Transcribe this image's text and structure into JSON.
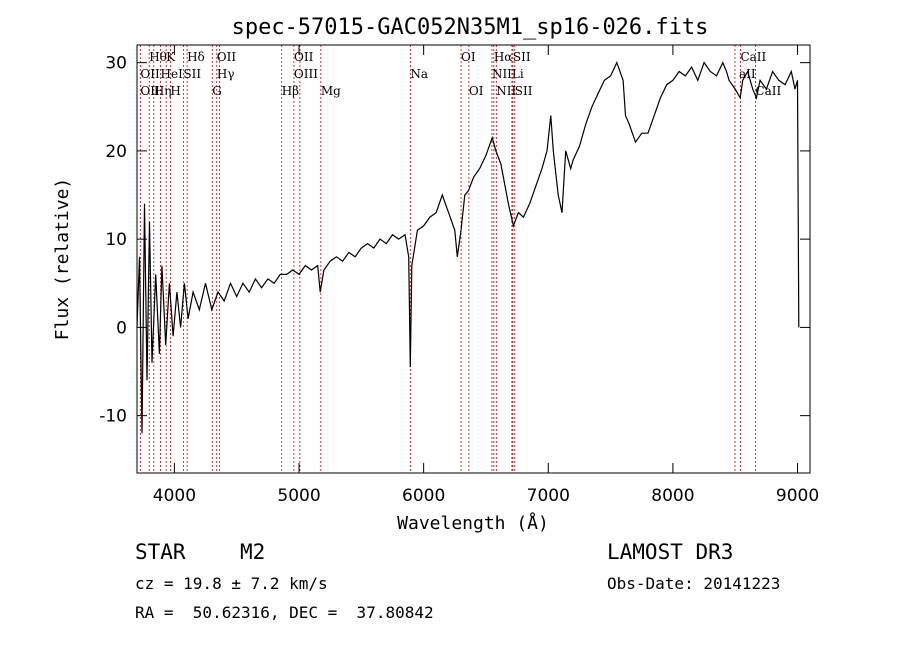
{
  "chart_data": {
    "type": "line",
    "title": "spec-57015-GAC052N35M1_sp16-026.fits",
    "xlabel": "Wavelength (Å)",
    "ylabel": "Flux (relative)",
    "xlim": [
      3700,
      9100
    ],
    "ylim": [
      -16.5,
      32
    ],
    "xticks": [
      4000,
      5000,
      6000,
      7000,
      8000,
      9000
    ],
    "yticks": [
      -10,
      0,
      10,
      20,
      30
    ],
    "grid": false,
    "spectrum": {
      "name": "flux",
      "points": [
        [
          3700,
          0
        ],
        [
          3720,
          8
        ],
        [
          3740,
          -12
        ],
        [
          3760,
          14
        ],
        [
          3780,
          -6
        ],
        [
          3800,
          12
        ],
        [
          3820,
          -4
        ],
        [
          3850,
          6
        ],
        [
          3880,
          -3
        ],
        [
          3900,
          7
        ],
        [
          3930,
          -2
        ],
        [
          3960,
          5
        ],
        [
          3990,
          -1
        ],
        [
          4020,
          4
        ],
        [
          4050,
          0
        ],
        [
          4080,
          5
        ],
        [
          4110,
          1
        ],
        [
          4150,
          4
        ],
        [
          4200,
          2
        ],
        [
          4250,
          5
        ],
        [
          4300,
          2
        ],
        [
          4350,
          4
        ],
        [
          4400,
          3
        ],
        [
          4450,
          5
        ],
        [
          4500,
          3.5
        ],
        [
          4550,
          5
        ],
        [
          4600,
          4
        ],
        [
          4650,
          5.5
        ],
        [
          4700,
          4.5
        ],
        [
          4750,
          5.5
        ],
        [
          4800,
          5
        ],
        [
          4850,
          6
        ],
        [
          4900,
          6
        ],
        [
          4950,
          6.5
        ],
        [
          5000,
          6
        ],
        [
          5050,
          7
        ],
        [
          5100,
          6.5
        ],
        [
          5150,
          7
        ],
        [
          5170,
          4
        ],
        [
          5200,
          6.5
        ],
        [
          5250,
          7.5
        ],
        [
          5300,
          8
        ],
        [
          5350,
          7.5
        ],
        [
          5400,
          8.5
        ],
        [
          5450,
          8
        ],
        [
          5500,
          9
        ],
        [
          5550,
          9.5
        ],
        [
          5600,
          9
        ],
        [
          5650,
          10
        ],
        [
          5700,
          9.5
        ],
        [
          5750,
          10.5
        ],
        [
          5800,
          10
        ],
        [
          5850,
          10.5
        ],
        [
          5880,
          8
        ],
        [
          5893,
          -4.5
        ],
        [
          5905,
          7
        ],
        [
          5950,
          11
        ],
        [
          6000,
          11.5
        ],
        [
          6050,
          12.5
        ],
        [
          6100,
          13
        ],
        [
          6150,
          15
        ],
        [
          6200,
          13
        ],
        [
          6250,
          11
        ],
        [
          6270,
          8
        ],
        [
          6300,
          11
        ],
        [
          6330,
          15
        ],
        [
          6360,
          15.5
        ],
        [
          6400,
          17
        ],
        [
          6450,
          18
        ],
        [
          6500,
          19.5
        ],
        [
          6550,
          21.5
        ],
        [
          6580,
          20
        ],
        [
          6620,
          18.5
        ],
        [
          6680,
          14
        ],
        [
          6720,
          11.5
        ],
        [
          6760,
          13
        ],
        [
          6800,
          12.5
        ],
        [
          6850,
          14
        ],
        [
          6900,
          16
        ],
        [
          6950,
          18
        ],
        [
          6990,
          20
        ],
        [
          7020,
          24
        ],
        [
          7040,
          20
        ],
        [
          7080,
          15
        ],
        [
          7110,
          13
        ],
        [
          7140,
          20
        ],
        [
          7180,
          18
        ],
        [
          7200,
          19
        ],
        [
          7250,
          20.5
        ],
        [
          7300,
          23
        ],
        [
          7350,
          25
        ],
        [
          7400,
          26.5
        ],
        [
          7450,
          28
        ],
        [
          7500,
          28.5
        ],
        [
          7550,
          30
        ],
        [
          7600,
          28
        ],
        [
          7620,
          24
        ],
        [
          7650,
          23
        ],
        [
          7700,
          21
        ],
        [
          7750,
          22
        ],
        [
          7800,
          22
        ],
        [
          7850,
          24
        ],
        [
          7900,
          26
        ],
        [
          7950,
          27.5
        ],
        [
          8000,
          28
        ],
        [
          8050,
          29
        ],
        [
          8100,
          28.5
        ],
        [
          8150,
          29.5
        ],
        [
          8200,
          28
        ],
        [
          8250,
          30
        ],
        [
          8300,
          29
        ],
        [
          8350,
          28.5
        ],
        [
          8400,
          30
        ],
        [
          8430,
          29
        ],
        [
          8450,
          28
        ],
        [
          8500,
          27
        ],
        [
          8540,
          26
        ],
        [
          8560,
          28
        ],
        [
          8600,
          29
        ],
        [
          8640,
          27
        ],
        [
          8670,
          26
        ],
        [
          8700,
          28
        ],
        [
          8750,
          27
        ],
        [
          8800,
          29
        ],
        [
          8850,
          28
        ],
        [
          8900,
          27.5
        ],
        [
          8950,
          29
        ],
        [
          8980,
          27
        ],
        [
          9000,
          28
        ],
        [
          9010,
          0
        ]
      ]
    },
    "line_markers": [
      {
        "label": "Hθ",
        "x": 3798,
        "row": 0
      },
      {
        "label": "K",
        "x": 3934,
        "row": 0
      },
      {
        "label": "Hδ",
        "x": 4102,
        "row": 0
      },
      {
        "label": "OII",
        "x": 4340,
        "row": 0
      },
      {
        "label": "OII",
        "x": 4960,
        "row": 0
      },
      {
        "label": "OI",
        "x": 6300,
        "row": 0
      },
      {
        "label": "Hα",
        "x": 6563,
        "row": 0
      },
      {
        "label": "SII",
        "x": 6716,
        "row": 0
      },
      {
        "label": "CaII",
        "x": 8542,
        "row": 0
      },
      {
        "label": "OII",
        "x": 3727,
        "row": 1
      },
      {
        "label": "HeI",
        "x": 3889,
        "row": 1
      },
      {
        "label": "SII",
        "x": 4072,
        "row": 1
      },
      {
        "label": "Hγ",
        "x": 4341,
        "row": 1
      },
      {
        "label": "OIII",
        "x": 4959,
        "row": 1
      },
      {
        "label": "Na",
        "x": 5893,
        "row": 1
      },
      {
        "label": "NII",
        "x": 6548,
        "row": 1
      },
      {
        "label": "Li",
        "x": 6708,
        "row": 1
      },
      {
        "label": "aII",
        "x": 8530,
        "row": 1
      },
      {
        "label": "OII",
        "x": 3727,
        "row": 2
      },
      {
        "label": "Hη",
        "x": 3835,
        "row": 2
      },
      {
        "label": "H",
        "x": 3968,
        "row": 2
      },
      {
        "label": "G",
        "x": 4304,
        "row": 2
      },
      {
        "label": "Hβ",
        "x": 4861,
        "row": 2
      },
      {
        "label": "Mg",
        "x": 5175,
        "row": 2
      },
      {
        "label": "OI",
        "x": 6363,
        "row": 2
      },
      {
        "label": "NII",
        "x": 6583,
        "row": 2
      },
      {
        "label": "SII",
        "x": 6731,
        "row": 2
      },
      {
        "label": "CaII",
        "x": 8662,
        "row": 2
      }
    ],
    "marker_lines_x": [
      3727,
      3798,
      3835,
      3889,
      3934,
      3968,
      4072,
      4102,
      4304,
      4340,
      4363,
      4861,
      4959,
      5007,
      5175,
      5893,
      6300,
      6363,
      6548,
      6563,
      6583,
      6708,
      6716,
      6731,
      8498,
      8542,
      8662
    ],
    "colors": {
      "spectrum": "#000000",
      "markers": "#cc0000",
      "axes": "#000000"
    }
  },
  "info": {
    "object_type": "STAR",
    "subclass": "M2",
    "survey": "LAMOST DR3",
    "cz": "cz = 19.8 ± 7.2 km/s",
    "obs_date": "Obs-Date: 20141223",
    "coords": "RA =  50.62316, DEC =  37.80842"
  }
}
